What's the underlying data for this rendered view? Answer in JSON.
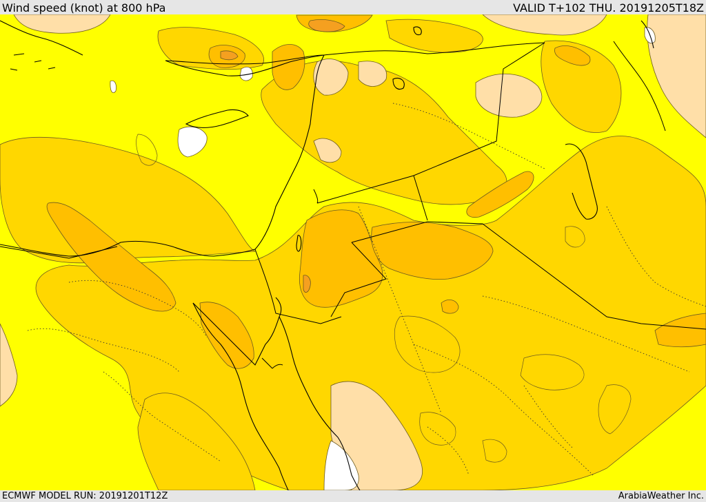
{
  "header": {
    "title": "Wind speed (knot) at 800 hPa",
    "valid": "VALID T+102 THU. 20191205T18Z"
  },
  "footer": {
    "model_run": "ECMWF MODEL RUN: 20191201T12Z",
    "credit": "ArabiaWeather Inc."
  },
  "map": {
    "colors": {
      "low_wind": "#ffdfa8",
      "base": "#ffff00",
      "band_1": "#ffd700",
      "band_2": "#ffbf00",
      "band_3": "#f5a020",
      "no_data": "#ffffff",
      "contour": "#5a4a20",
      "coastline": "#000000",
      "border": "#000000"
    }
  }
}
